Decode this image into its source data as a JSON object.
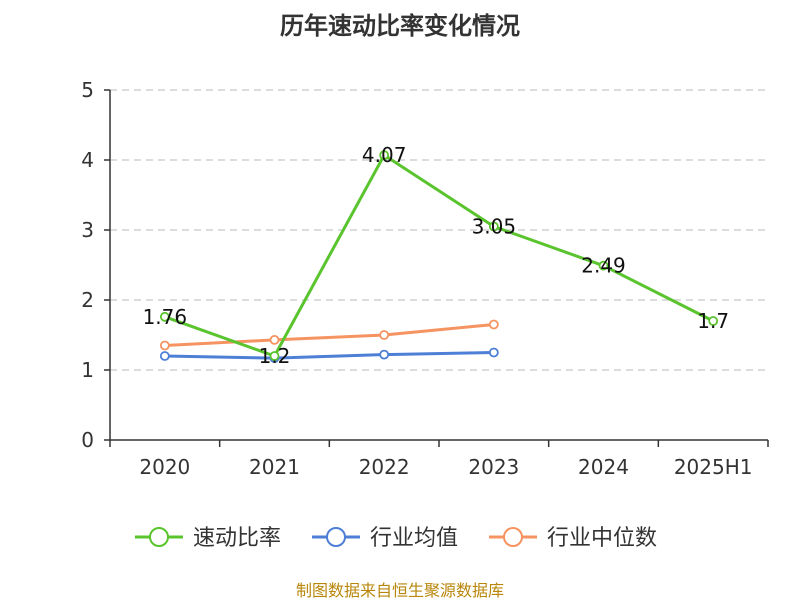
{
  "chart_data": {
    "type": "line",
    "title": "历年速动比率变化情况",
    "categories": [
      "2020",
      "2021",
      "2022",
      "2023",
      "2024",
      "2025H1"
    ],
    "ylim": [
      0,
      5
    ],
    "yticks": [
      "0",
      "1",
      "2",
      "3",
      "4",
      "5"
    ],
    "grid": true,
    "legend_position": "bottom",
    "series": [
      {
        "name": "速动比率",
        "color": "#5ac42e",
        "values": [
          1.76,
          1.2,
          4.07,
          3.05,
          2.49,
          1.7
        ],
        "labels": [
          "1.76",
          "1.2",
          "4.07",
          "3.05",
          "2.49",
          "1.7"
        ]
      },
      {
        "name": "行业均值",
        "color": "#4e7fd6",
        "values": [
          1.2,
          1.17,
          1.22,
          1.25,
          null,
          null
        ]
      },
      {
        "name": "行业中位数",
        "color": "#f59361",
        "values": [
          1.35,
          1.43,
          1.5,
          1.65,
          null,
          null
        ]
      }
    ]
  },
  "footer": "制图数据来自恒生聚源数据库"
}
